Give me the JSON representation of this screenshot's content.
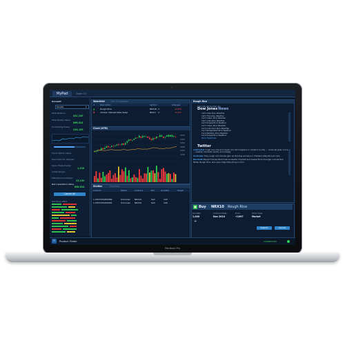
{
  "app": {
    "tabs": [
      "MyPad",
      "Trade 10"
    ],
    "product_name": "Product Finder",
    "connection_status": "CONNECTED",
    "laptop_model": "MacBook Pro"
  },
  "account": {
    "label": "Account",
    "selected": "Sandia",
    "stats": [
      {
        "label": "Total Balance",
        "value": "441,249"
      },
      {
        "label": "Total Equity Value",
        "value": "868,624"
      },
      {
        "label": "Purchasing Power",
        "value": "434,163"
      }
    ],
    "side_labels": [
      "Short Option Value",
      "Securities On Deposit",
      "Open Trade Equity",
      "Initial Margin",
      "Maintenance Margin",
      "Net Liquidation Value"
    ],
    "side_values": [
      "",
      "",
      "1,226",
      "",
      "23,190",
      "868,624"
    ],
    "cancel_all_label": "Cancel All",
    "cancel_all_color": "#2f86c9",
    "trending_label": "Trending offers",
    "exposure_fill_pct": 65
  },
  "watchlist": {
    "title": "Watchlist",
    "ghost_tab": "Iron Crumbsger",
    "columns": [
      "Description",
      "Symbol",
      "Changes"
    ],
    "rows": [
      {
        "description": "Rough Rice",
        "symbol": "NRX10",
        "change": "-0.025"
      },
      {
        "description": "10-Year Interest Rate Swap",
        "symbol": "NIS11",
        "change": "-0.015"
      }
    ]
  },
  "chart": {
    "title": "Chart (NTB)",
    "price_labels": [
      "1440",
      "1420",
      "1400",
      "1380",
      "1360",
      "1340"
    ]
  },
  "shelter": {
    "title": "Shelter",
    "ghost_tab": "Positions",
    "columns": [
      "Trade ID",
      "Status",
      "Contract",
      "B/S",
      "Quantity",
      "Target"
    ],
    "rows": [
      {
        "trade_id": "",
        "status": "",
        "contract": "",
        "bs": "",
        "qty": "",
        "target": ""
      },
      {
        "trade_id": "1.2007159450082",
        "status": "Unknown",
        "contract": "NRX10",
        "bs": "Sell",
        "qty": "100",
        "target": ""
      },
      {
        "trade_id": "1.2007159450001",
        "status": "Unknown",
        "contract": "NRX10",
        "bs": "Sell",
        "qty": "100",
        "target": ""
      }
    ]
  },
  "news": {
    "title": "Rough Rice",
    "date_line": "Thursday November 04",
    "dow_jones_label": "Dow Jones",
    "news_label": "News",
    "headlines": [
      "10/1 India Rice Weather",
      "10/1 Thursday Weather",
      "11/1 Indian Rice Weather",
      "10/1 India Rice Weather",
      "11/1 Punjab Rice Weather",
      "11/1 Indian Rice Weather",
      "11/1 Indochina Rice Weather",
      "11/1 Bangladesh Rice Weather",
      "11/1 Pakistan Rice Weather",
      "11/1 Punjab Rice Weather",
      "More Headlines"
    ],
    "twitter_label": "Twitter",
    "tweets": [
      {
        "user": "realrocket",
        "text": "rough rice cow and rough rice who happens in rowland county ... under-all grain score ... weaken domestic sector accordingly"
      },
      {
        "user": "ricetrade",
        "text": "They rough rice futures gain as flooding worsens in Thailand http://tinyurl.com/"
      },
      {
        "user": "Rurchaik",
        "text": "Rough Futures Performance weaker (highest and lowest Price Change) include Red Millet, Rough Rice, and Lean Hogs http://tinyurl.com/"
      }
    ]
  },
  "trade_ticket": {
    "action": "Buy",
    "symbol": "NRX10",
    "name": "Rough Rice",
    "fields": [
      {
        "label": "Quantity",
        "value": "1,000"
      },
      {
        "label": "Contract Date",
        "value": "Nov 2010"
      },
      {
        "label": "Price",
        "value": "+1097"
      },
      {
        "label": "Order Type",
        "value": "Market"
      }
    ],
    "submit_label": "Submit",
    "cancel_label": "Cancel",
    "accent": "#2f86c9"
  }
}
